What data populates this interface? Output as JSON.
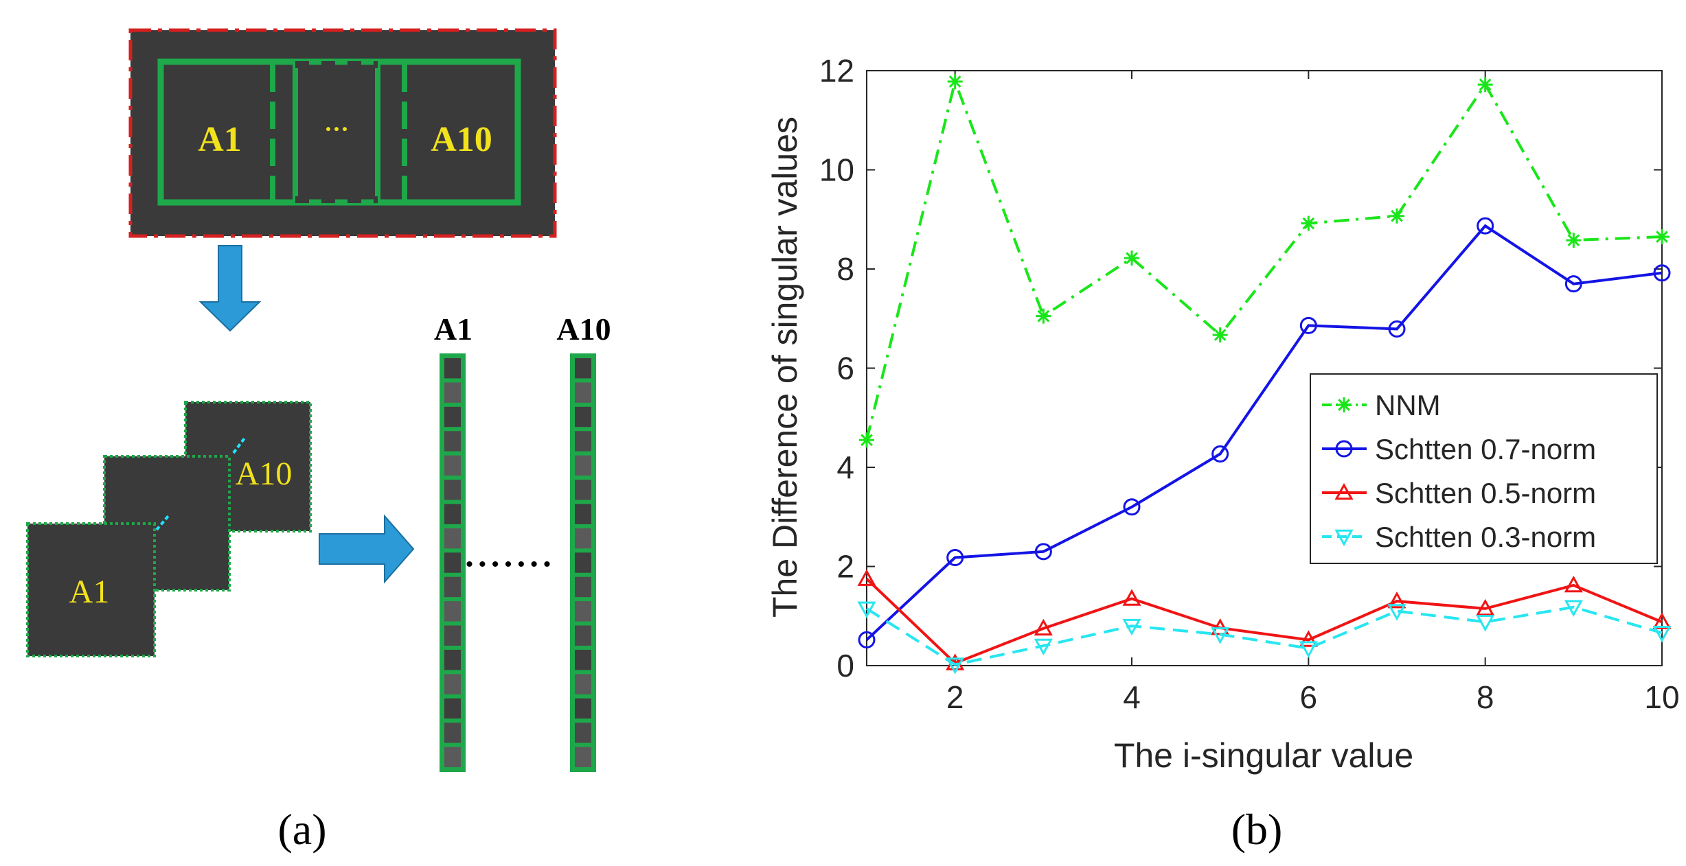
{
  "panel_a": {
    "caption": "(a)",
    "top_labels": {
      "first": "A1",
      "ellipsis": "···",
      "last": "A10"
    },
    "stack_labels": {
      "front": "A1",
      "back": "A10"
    },
    "column_labels": [
      "A1",
      "A10"
    ],
    "dots": "• • • • • • •",
    "colors": {
      "patch": "#3a3a3a",
      "green": "#1ea84a",
      "yellow": "#f2e21c",
      "red": "#d62020",
      "arrow": "#2b9ad6",
      "cyan": "#1ee6ff"
    }
  },
  "panel_b": {
    "caption": "(b)"
  },
  "chart_data": {
    "type": "line",
    "xlabel": "The i-singular value",
    "ylabel": "The Difference of singular values",
    "xlim": [
      1,
      10
    ],
    "ylim": [
      0,
      12
    ],
    "xticks": [
      2,
      4,
      6,
      8,
      10
    ],
    "yticks": [
      0,
      2,
      4,
      6,
      8,
      10,
      12
    ],
    "grid": false,
    "legend_position": "middle-right",
    "x": [
      1,
      2,
      3,
      4,
      5,
      6,
      7,
      8,
      9,
      10
    ],
    "series": [
      {
        "name": "NNM",
        "values": [
          4.55,
          11.78,
          7.05,
          8.22,
          6.67,
          8.92,
          9.07,
          11.72,
          8.58,
          8.65
        ],
        "color": "#19e619",
        "marker": "asterisk",
        "line": "dashdot"
      },
      {
        "name": "Schtten 0.7-norm",
        "values": [
          0.52,
          2.18,
          2.3,
          3.2,
          4.27,
          6.86,
          6.79,
          8.87,
          7.7,
          7.92
        ],
        "color": "#1414e6",
        "marker": "circle",
        "line": "solid"
      },
      {
        "name": "Schtten 0.5-norm",
        "values": [
          1.75,
          0.05,
          0.75,
          1.35,
          0.76,
          0.52,
          1.3,
          1.15,
          1.62,
          0.88
        ],
        "color": "#f01414",
        "marker": "triangle-up",
        "line": "solid"
      },
      {
        "name": "Schtten 0.3-norm",
        "values": [
          1.15,
          0.02,
          0.4,
          0.8,
          0.63,
          0.35,
          1.1,
          0.88,
          1.18,
          0.66
        ],
        "color": "#28e6f0",
        "marker": "triangle-down",
        "line": "dashed"
      }
    ]
  }
}
